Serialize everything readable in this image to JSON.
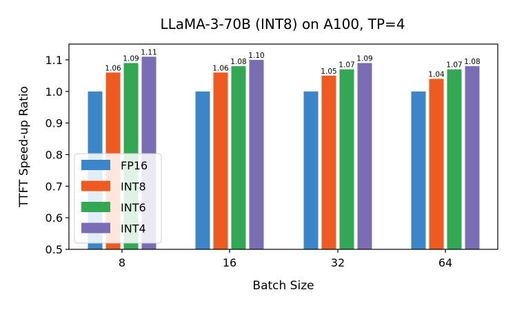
{
  "chart_data": {
    "type": "bar",
    "title": "LLaMA-3-70B (INT8) on A100, TP=4",
    "xlabel": "Batch Size",
    "ylabel": "TTFT Speed-up Ratio",
    "categories": [
      "8",
      "16",
      "32",
      "64"
    ],
    "ylim": [
      0.5,
      1.15
    ],
    "yticks": [
      "0.5",
      "0.6",
      "0.7",
      "0.8",
      "0.9",
      "1.0",
      "1.1"
    ],
    "grid": false,
    "legend_position": "lower-left",
    "series": [
      {
        "name": "FP16",
        "color": "#3a86c8",
        "values": [
          1.0,
          1.0,
          1.0,
          1.0
        ],
        "labels": [
          "",
          "",
          "",
          ""
        ]
      },
      {
        "name": "INT8",
        "color": "#ee5a1f",
        "values": [
          1.06,
          1.06,
          1.05,
          1.04
        ],
        "labels": [
          "1.06",
          "1.06",
          "1.05",
          "1.04"
        ]
      },
      {
        "name": "INT6",
        "color": "#33a853",
        "values": [
          1.09,
          1.08,
          1.07,
          1.07
        ],
        "labels": [
          "1.09",
          "1.08",
          "1.07",
          "1.07"
        ]
      },
      {
        "name": "INT4",
        "color": "#7b6db3",
        "values": [
          1.11,
          1.1,
          1.09,
          1.08
        ],
        "labels": [
          "1.11",
          "1.10",
          "1.09",
          "1.08"
        ]
      }
    ]
  }
}
